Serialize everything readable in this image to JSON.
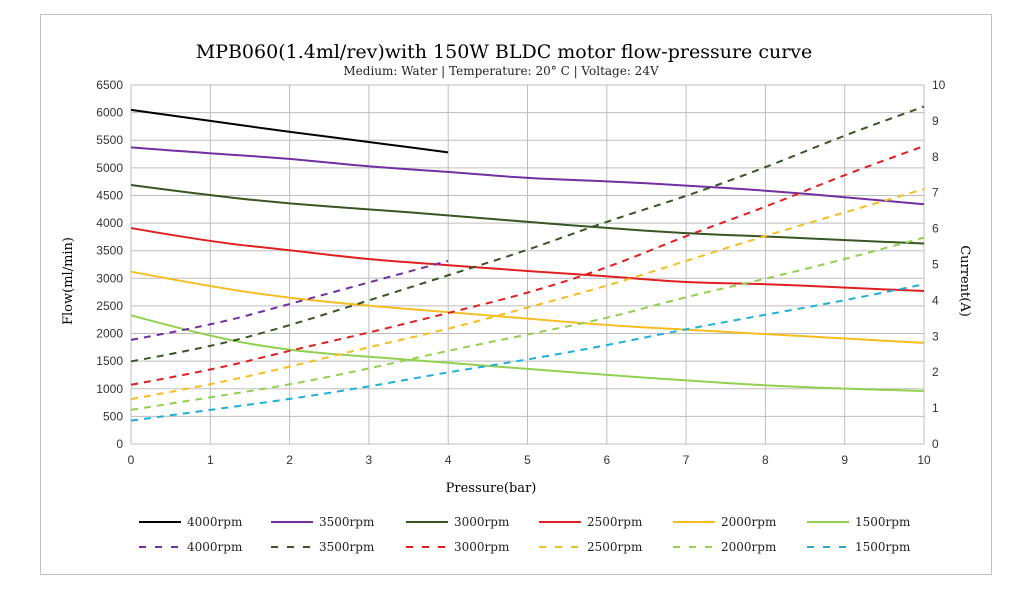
{
  "chart_data": {
    "type": "line",
    "title": "MPB060(1.4ml/rev)with 150W BLDC motor flow-pressure curve",
    "subtitle": "Medium: Water | Temperature: 20° C | Voltage: 24V",
    "xlabel": "Pressure(bar)",
    "ylabel": "Flow(ml/min)",
    "y2label": "Current(A)",
    "xlim": [
      0,
      10
    ],
    "ylim": [
      0,
      6500
    ],
    "y2lim": [
      0,
      10
    ],
    "x_ticks": [
      "0",
      "1",
      "2",
      "3",
      "4",
      "5",
      "6",
      "7",
      "8",
      "9",
      "10"
    ],
    "y_ticks": [
      "0",
      "500",
      "1000",
      "1500",
      "2000",
      "2500",
      "3000",
      "3500",
      "4000",
      "4500",
      "5000",
      "5500",
      "6000",
      "6500"
    ],
    "y2_ticks": [
      "0",
      "1",
      "2",
      "3",
      "4",
      "5",
      "6",
      "7",
      "8",
      "9",
      "10"
    ],
    "grid": true,
    "legend_position": "bottom",
    "series": [
      {
        "name": "4000rpm",
        "axis": "flow",
        "style": "solid",
        "color": "#000000",
        "x": [
          0,
          1,
          2,
          3,
          4
        ],
        "y": [
          6050,
          5850,
          5650,
          5470,
          5280
        ]
      },
      {
        "name": "3500rpm",
        "axis": "flow",
        "style": "solid",
        "color": "#7030a0",
        "x": [
          0,
          1,
          2,
          3,
          4,
          5,
          6,
          7,
          8,
          9,
          10
        ],
        "y": [
          5370,
          5260,
          5170,
          5020,
          4930,
          4810,
          4760,
          4680,
          4590,
          4470,
          4340
        ]
      },
      {
        "name": "3000rpm",
        "axis": "flow",
        "style": "solid",
        "color": "#375623",
        "x": [
          0,
          1,
          2,
          3,
          4,
          5,
          6,
          7,
          8,
          9,
          10
        ],
        "y": [
          4690,
          4500,
          4350,
          4250,
          4140,
          4020,
          3910,
          3810,
          3760,
          3690,
          3630
        ]
      },
      {
        "name": "2500rpm",
        "axis": "flow",
        "style": "solid",
        "color": "#e02020",
        "x": [
          0,
          1,
          2,
          3,
          4,
          5,
          6,
          7,
          8,
          9,
          10
        ],
        "y": [
          3910,
          3660,
          3510,
          3340,
          3240,
          3130,
          3040,
          2920,
          2900,
          2830,
          2770
        ]
      },
      {
        "name": "2000rpm",
        "axis": "flow",
        "style": "solid",
        "color": "#f5bd1f",
        "x": [
          0,
          1,
          2,
          3,
          4,
          5,
          6,
          7,
          8,
          9,
          10
        ],
        "y": [
          3120,
          2850,
          2640,
          2500,
          2390,
          2270,
          2150,
          2070,
          1990,
          1910,
          1830
        ]
      },
      {
        "name": "1500rpm",
        "axis": "flow",
        "style": "solid",
        "color": "#92d050",
        "x": [
          0,
          1,
          2,
          3,
          4,
          5,
          6,
          7,
          8,
          9,
          10
        ],
        "y": [
          2330,
          1940,
          1690,
          1580,
          1470,
          1360,
          1250,
          1150,
          1060,
          1000,
          960
        ]
      },
      {
        "name": "4000rpm",
        "axis": "current",
        "style": "dashed",
        "color": "#7030a0",
        "x": [
          0,
          1,
          2,
          3,
          4
        ],
        "y": [
          2.9,
          3.3,
          3.9,
          4.5,
          5.1
        ]
      },
      {
        "name": "3500rpm",
        "axis": "current",
        "style": "dashed",
        "color": "#375623",
        "x": [
          0,
          1,
          2,
          3,
          4,
          5,
          6,
          7,
          8,
          9,
          10
        ],
        "y": [
          2.3,
          2.7,
          3.3,
          4.0,
          4.7,
          5.4,
          6.2,
          6.9,
          7.7,
          8.6,
          9.4
        ]
      },
      {
        "name": "3000rpm",
        "axis": "current",
        "style": "dashed",
        "color": "#e02020",
        "x": [
          0,
          1,
          2,
          3,
          4,
          5,
          6,
          7,
          8,
          9,
          10
        ],
        "y": [
          1.65,
          2.05,
          2.6,
          3.1,
          3.65,
          4.2,
          4.9,
          5.8,
          6.6,
          7.5,
          8.3
        ]
      },
      {
        "name": "2500rpm",
        "axis": "current",
        "style": "dashed",
        "color": "#f5bd1f",
        "x": [
          0,
          1,
          2,
          3,
          4,
          5,
          6,
          7,
          8,
          9,
          10
        ],
        "y": [
          1.25,
          1.65,
          2.15,
          2.7,
          3.2,
          3.8,
          4.4,
          5.1,
          5.8,
          6.45,
          7.1
        ]
      },
      {
        "name": "2000rpm",
        "axis": "current",
        "style": "dashed",
        "color": "#92d050",
        "x": [
          0,
          1,
          2,
          3,
          4,
          5,
          6,
          7,
          8,
          9,
          10
        ],
        "y": [
          0.95,
          1.3,
          1.65,
          2.1,
          2.6,
          3.05,
          3.5,
          4.1,
          4.6,
          5.15,
          5.75
        ]
      },
      {
        "name": "1500rpm",
        "axis": "current",
        "style": "dashed",
        "color": "#1fb0d8",
        "x": [
          0,
          1,
          2,
          3,
          4,
          5,
          6,
          7,
          8,
          9,
          10
        ],
        "y": [
          0.65,
          0.95,
          1.25,
          1.6,
          2.0,
          2.35,
          2.75,
          3.2,
          3.6,
          4.0,
          4.45
        ]
      }
    ]
  }
}
